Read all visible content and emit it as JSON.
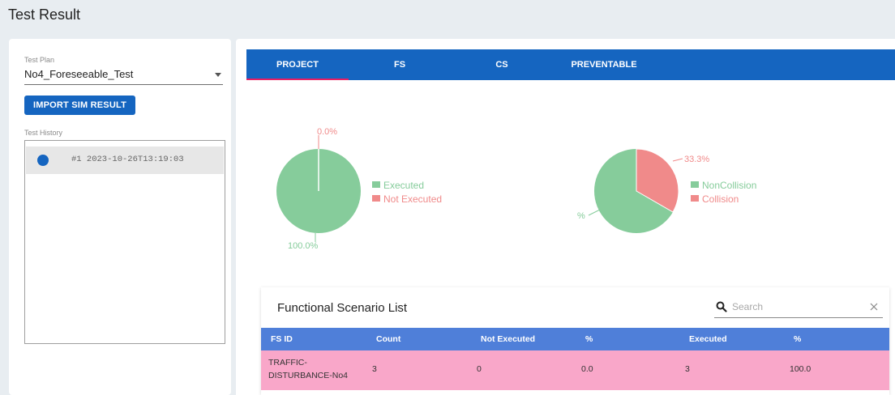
{
  "page": {
    "title": "Test Result"
  },
  "left_panel": {
    "plan_label": "Test Plan",
    "plan_value": "No4_Foreseeable_Test",
    "import_label": "IMPORT SIM RESULT",
    "history_label": "Test History",
    "history_items": [
      {
        "text": "#1 2023-10-26T13:19:03",
        "dot_color": "#1565c0"
      }
    ]
  },
  "tabs": [
    {
      "label": "PROJECT",
      "active": true
    },
    {
      "label": "FS"
    },
    {
      "label": "CS"
    },
    {
      "label": "PREVENTABLE"
    }
  ],
  "colors": {
    "accent": "#1565c0",
    "tab_indicator": "#e91e63",
    "green": "#86cc9b",
    "red": "#f08a8a"
  },
  "chart_data": [
    {
      "type": "pie",
      "slices": [
        {
          "name": "Executed",
          "value": 100.0,
          "label": "100.0%",
          "color": "#86cc9b"
        },
        {
          "name": "Not Executed",
          "value": 0.0,
          "label": "0.0%",
          "color": "#f08a8a"
        }
      ],
      "legend_position": "right"
    },
    {
      "type": "pie",
      "slices": [
        {
          "name": "NonCollision",
          "value": 66.7,
          "label": "%",
          "color": "#86cc9b"
        },
        {
          "name": "Collision",
          "value": 33.3,
          "label": "33.3%",
          "color": "#f08a8a"
        }
      ],
      "legend_position": "right"
    }
  ],
  "fs_table": {
    "title": "Functional Scenario List",
    "search_placeholder": "Search",
    "columns": [
      "FS ID",
      "Count",
      "Not Executed",
      "%",
      "Executed",
      "%"
    ],
    "rows": [
      {
        "fs_id_line1": "TRAFFIC-",
        "fs_id_line2": "DISTURBANCE-No4",
        "count": "3",
        "not_executed": "0",
        "not_executed_pct": "0.0",
        "executed": "3",
        "executed_pct": "100.0"
      }
    ]
  }
}
